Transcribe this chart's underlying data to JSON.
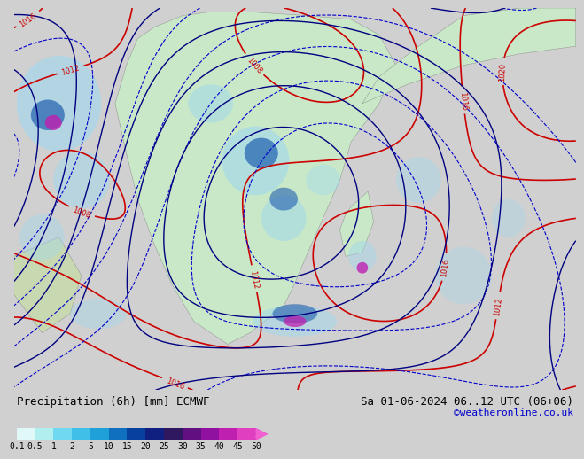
{
  "title_left": "Precipitation (6h) [mm] ECMWF",
  "title_right": "Sa 01-06-2024 06..12 UTC (06+06)",
  "credit": "©weatheronline.co.uk",
  "colorbar_levels": [
    0.1,
    0.5,
    1,
    2,
    5,
    10,
    15,
    20,
    25,
    30,
    35,
    40,
    45,
    50
  ],
  "colorbar_colors": [
    "#e0f8f8",
    "#b0eef0",
    "#70d8f0",
    "#40c0e8",
    "#20a0d8",
    "#1070c0",
    "#0840a0",
    "#102080",
    "#301860",
    "#601080",
    "#9010a0",
    "#c020b0",
    "#e040c0",
    "#f060d0"
  ],
  "bg_color": "#d0d0d0",
  "map_bg": "#c8e8c8",
  "sea_color": "#d0eef8",
  "rain_light_color": "#b0e8f0",
  "slp_color": "#cc0000",
  "z500_color": "#000080",
  "z850_color": "#0000cc",
  "contour_label_color_slp": "#cc0000",
  "contour_label_color_z": "#000080",
  "font_family": "monospace",
  "title_fontsize": 9,
  "credit_fontsize": 8,
  "tick_fontsize": 7
}
